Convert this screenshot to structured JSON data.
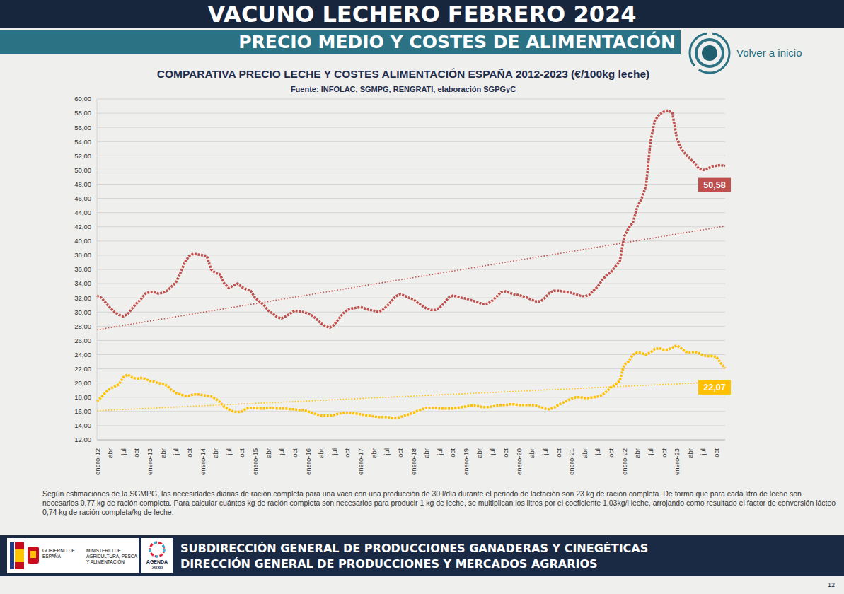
{
  "header": {
    "title": "VACUNO LECHERO FEBRERO 2024",
    "subtitle": "PRECIO MEDIO Y COSTES DE ALIMENTACIÓN",
    "link": "Volver a inicio"
  },
  "chart_data": {
    "type": "line",
    "title": "COMPARATIVA PRECIO LECHE Y COSTES ALIMENTACIÓN ESPAÑA 2012-2023 (€/100kg leche)",
    "subtitle": "Fuente: INFOLAC, SGMPG, RENGRATI, elaboración SGPGyC",
    "categories": [
      "enero-12",
      null,
      null,
      "abr",
      null,
      null,
      "jul",
      null,
      null,
      "oct",
      null,
      null,
      "enero-13",
      null,
      null,
      "abr",
      null,
      null,
      "jul",
      null,
      null,
      "oct",
      null,
      null,
      "enero-14",
      null,
      null,
      "abr",
      null,
      null,
      "jul",
      null,
      null,
      "oct",
      null,
      null,
      "enero-15",
      null,
      null,
      "abr",
      null,
      null,
      "jul",
      null,
      null,
      "oct",
      null,
      null,
      "enero-16",
      null,
      null,
      "abr",
      null,
      null,
      "jul",
      null,
      null,
      "oct",
      null,
      null,
      "enero-17",
      null,
      null,
      "abr",
      null,
      null,
      "jul",
      null,
      null,
      "oct",
      null,
      null,
      "enero-18",
      null,
      null,
      "abr",
      null,
      null,
      "jul",
      null,
      null,
      "oct",
      null,
      null,
      "enero-19",
      null,
      null,
      "abr",
      null,
      null,
      "jul",
      null,
      null,
      "oct",
      null,
      null,
      "enero-20",
      null,
      null,
      "abr",
      null,
      null,
      "jul",
      null,
      null,
      "oct",
      null,
      null,
      "enero-21",
      null,
      null,
      "abr",
      null,
      null,
      "jul",
      null,
      null,
      "oct",
      null,
      null,
      "enero-22",
      null,
      null,
      "abr",
      null,
      null,
      "jul",
      null,
      null,
      "oct",
      null,
      null,
      "enero-23",
      null,
      null,
      "abr",
      null,
      null,
      "jul",
      null,
      null,
      "oct",
      null,
      null
    ],
    "series": [
      {
        "color": "#c0504d",
        "line_style": "dotted",
        "trend": [
          27.5,
          42.1
        ],
        "values": [
          32.3,
          32.0,
          31.3,
          30.6,
          30.0,
          29.6,
          29.4,
          29.7,
          30.5,
          31.2,
          31.8,
          32.6,
          32.8,
          32.8,
          32.6,
          32.7,
          33.0,
          33.6,
          34.2,
          35.5,
          37.0,
          37.9,
          38.2,
          38.1,
          38.0,
          37.9,
          36.0,
          35.5,
          35.3,
          34.0,
          33.4,
          33.7,
          34.0,
          33.5,
          33.2,
          33.0,
          32.0,
          31.5,
          31.0,
          30.2,
          29.8,
          29.3,
          29.1,
          29.4,
          29.8,
          30.2,
          30.1,
          30.0,
          29.8,
          29.5,
          29.0,
          28.4,
          28.0,
          27.8,
          28.2,
          29.0,
          29.8,
          30.3,
          30.5,
          30.6,
          30.7,
          30.5,
          30.3,
          30.2,
          30.0,
          30.3,
          30.8,
          31.5,
          32.2,
          32.5,
          32.3,
          32.0,
          31.8,
          31.3,
          30.9,
          30.5,
          30.3,
          30.3,
          30.6,
          31.2,
          32.0,
          32.3,
          32.2,
          32.0,
          31.9,
          31.7,
          31.5,
          31.3,
          31.1,
          31.2,
          31.6,
          32.2,
          32.8,
          32.9,
          32.7,
          32.5,
          32.4,
          32.2,
          32.0,
          31.7,
          31.5,
          31.5,
          32.0,
          32.7,
          33.0,
          33.0,
          32.9,
          32.8,
          32.7,
          32.5,
          32.3,
          32.2,
          32.4,
          33.0,
          33.6,
          34.5,
          35.2,
          35.6,
          36.4,
          37.1,
          40.6,
          41.8,
          42.6,
          44.8,
          46.0,
          47.8,
          54.0,
          57.0,
          57.8,
          58.2,
          58.4,
          58.0,
          54.5,
          53.0,
          52.2,
          51.6,
          51.0,
          50.2,
          50.0,
          50.2,
          50.5,
          50.6,
          50.7,
          50.58
        ]
      },
      {
        "color": "#ffc000",
        "line_style": "dotted",
        "trend": [
          16.1,
          20.2
        ],
        "values": [
          17.4,
          18.0,
          18.7,
          19.2,
          19.5,
          19.8,
          20.8,
          21.2,
          20.8,
          20.6,
          20.7,
          20.6,
          20.3,
          20.2,
          20.0,
          19.9,
          19.6,
          19.0,
          18.6,
          18.4,
          18.2,
          18.2,
          18.4,
          18.4,
          18.3,
          18.2,
          18.1,
          17.8,
          17.3,
          16.6,
          16.3,
          16.0,
          15.9,
          16.0,
          16.4,
          16.5,
          16.5,
          16.4,
          16.4,
          16.5,
          16.5,
          16.4,
          16.4,
          16.4,
          16.3,
          16.3,
          16.2,
          16.2,
          16.0,
          15.8,
          15.6,
          15.4,
          15.4,
          15.4,
          15.5,
          15.7,
          15.8,
          15.8,
          15.8,
          15.7,
          15.6,
          15.5,
          15.4,
          15.3,
          15.2,
          15.2,
          15.2,
          15.1,
          15.1,
          15.2,
          15.4,
          15.6,
          15.8,
          16.1,
          16.3,
          16.5,
          16.5,
          16.5,
          16.4,
          16.4,
          16.4,
          16.4,
          16.5,
          16.6,
          16.7,
          16.8,
          16.8,
          16.7,
          16.6,
          16.6,
          16.7,
          16.8,
          16.9,
          16.9,
          17.0,
          17.0,
          16.9,
          16.9,
          16.9,
          16.9,
          16.8,
          16.6,
          16.4,
          16.3,
          16.5,
          16.9,
          17.2,
          17.5,
          17.8,
          18.0,
          18.0,
          17.9,
          17.9,
          18.0,
          18.1,
          18.3,
          18.8,
          19.4,
          19.8,
          20.3,
          22.6,
          23.0,
          24.0,
          24.3,
          24.2,
          24.0,
          24.3,
          24.8,
          24.9,
          24.7,
          24.7,
          25.0,
          25.3,
          24.9,
          24.4,
          24.3,
          24.4,
          24.2,
          23.9,
          23.8,
          23.8,
          23.7,
          22.8,
          22.07
        ]
      }
    ],
    "ylim": [
      12,
      60
    ],
    "yticks": [
      {
        "value": 12,
        "label": "12,00"
      },
      {
        "value": 14,
        "label": "14,00"
      },
      {
        "value": 16,
        "label": "16,00"
      },
      {
        "value": 18,
        "label": "18,00"
      },
      {
        "value": 20,
        "label": "20,00"
      },
      {
        "value": 22,
        "label": "22,00"
      },
      {
        "value": 24,
        "label": "24,00"
      },
      {
        "value": 26,
        "label": "26,00"
      },
      {
        "value": 28,
        "label": "28,00"
      },
      {
        "value": 30,
        "label": "30,00"
      },
      {
        "value": 32,
        "label": "32,00"
      },
      {
        "value": 34,
        "label": "34,00"
      },
      {
        "value": 36,
        "label": "36,00"
      },
      {
        "value": 38,
        "label": "38,00"
      },
      {
        "value": 40,
        "label": "40,00"
      },
      {
        "value": 42,
        "label": "42,00"
      },
      {
        "value": 44,
        "label": "44,00"
      },
      {
        "value": 46,
        "label": "46,00"
      },
      {
        "value": 48,
        "label": "48,00"
      },
      {
        "value": 50,
        "label": "50,00"
      },
      {
        "value": 52,
        "label": "52,00"
      },
      {
        "value": 54,
        "label": "54,00"
      },
      {
        "value": 56,
        "label": "56,00"
      },
      {
        "value": 58,
        "label": "58,00"
      },
      {
        "value": 60,
        "label": "60,00"
      }
    ],
    "grid": true,
    "annotations": [
      {
        "text": "50,58",
        "value": 50.58,
        "color": "#c0504d"
      },
      {
        "text": "22,07",
        "value": 22.07,
        "color": "#ffc000"
      }
    ]
  },
  "footnote": "Según estimaciones de la SGMPG, las necesidades diarias de ración completa para una vaca con una producción de 30 l/día durante el periodo de lactación son 23 kg de ración completa. De forma que para cada litro de leche son necesarios 0,77 kg de ración completa. Para calcular cuántos kg de ración completa son necesarios para producir 1 kg de leche, se multiplican los litros por el coeficiente 1,03kg/l leche, arrojando como resultado el factor de conversión lácteo 0,74 kg de ración completa/kg de leche.",
  "footer": {
    "lines": [
      "SUBDIRECCIÓN GENERAL DE PRODUCCIONES GANADERAS Y CINEGÉTICAS",
      "DIRECCIÓN GENERAL DE PRODUCCIONES Y MERCADOS AGRARIOS"
    ],
    "logo_government": "GOBIERNO DE ESPAÑA",
    "logo_ministry": "MINISTERIO DE AGRICULTURA, PESCA Y ALIMENTACIÓN",
    "logo_agenda": "AGENDA 2030",
    "page": "12"
  }
}
